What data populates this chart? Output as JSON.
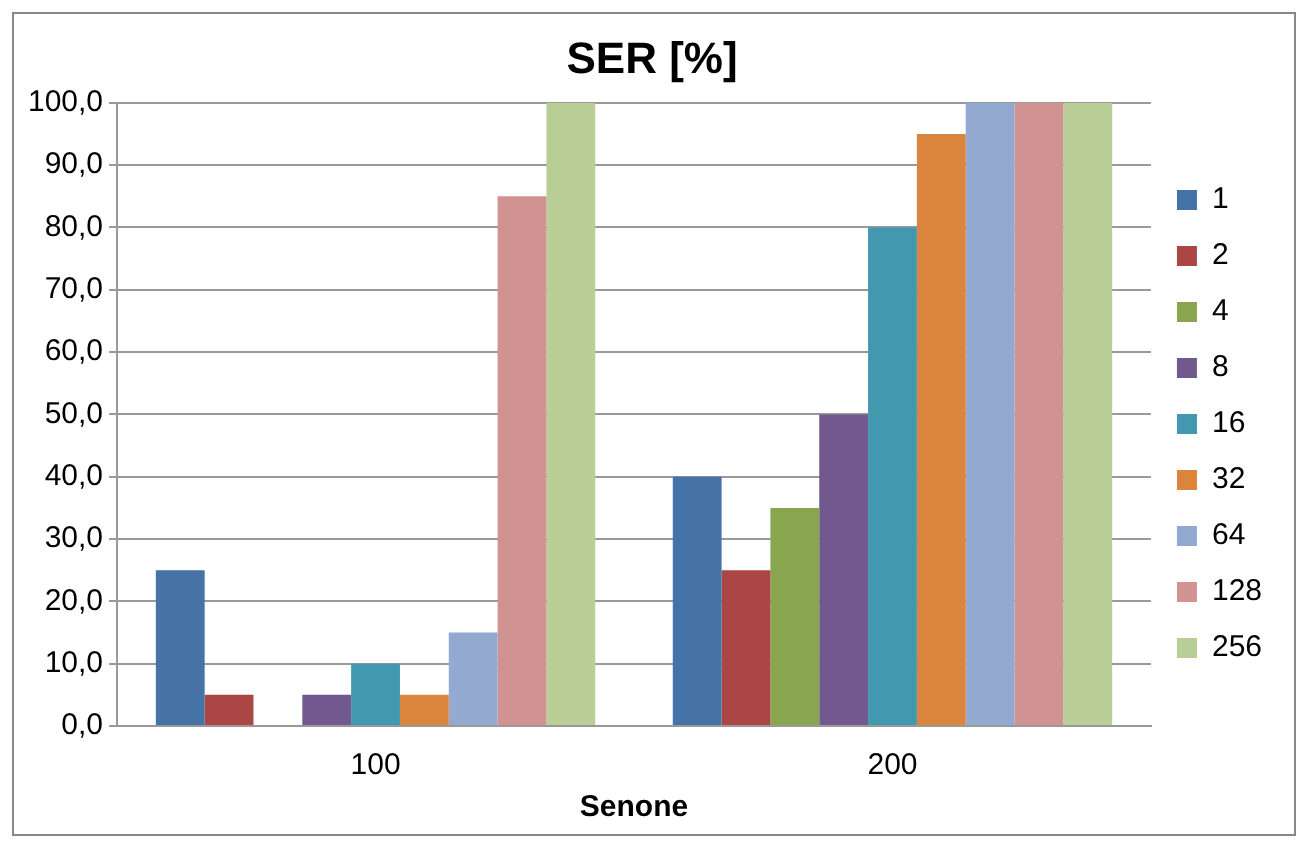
{
  "chart_data": {
    "type": "bar",
    "title": "SER [%]",
    "xlabel": "Senone",
    "categories": [
      "100",
      "200"
    ],
    "series": [
      {
        "name": "1",
        "color": "#4572a7",
        "values": [
          25,
          40
        ]
      },
      {
        "name": "2",
        "color": "#aa4643",
        "values": [
          5,
          25
        ]
      },
      {
        "name": "4",
        "color": "#89a54e",
        "values": [
          0,
          35
        ]
      },
      {
        "name": "8",
        "color": "#71588f",
        "values": [
          5,
          50
        ]
      },
      {
        "name": "16",
        "color": "#4198af",
        "values": [
          10,
          80
        ]
      },
      {
        "name": "32",
        "color": "#db843d",
        "values": [
          5,
          95
        ]
      },
      {
        "name": "64",
        "color": "#93a9cf",
        "values": [
          15,
          100
        ]
      },
      {
        "name": "128",
        "color": "#d19392",
        "values": [
          85,
          100
        ]
      },
      {
        "name": "256",
        "color": "#b9cd96",
        "values": [
          100,
          100
        ]
      }
    ],
    "ylim": [
      0,
      100
    ],
    "yticks": [
      {
        "value": 0,
        "label": "0,0"
      },
      {
        "value": 10,
        "label": "10,0"
      },
      {
        "value": 20,
        "label": "20,0"
      },
      {
        "value": 30,
        "label": "30,0"
      },
      {
        "value": 40,
        "label": "40,0"
      },
      {
        "value": 50,
        "label": "50,0"
      },
      {
        "value": 60,
        "label": "60,0"
      },
      {
        "value": 70,
        "label": "70,0"
      },
      {
        "value": 80,
        "label": "80,0"
      },
      {
        "value": 90,
        "label": "90,0"
      },
      {
        "value": 100,
        "label": "100,0"
      }
    ],
    "grid": "y",
    "legend": "right"
  }
}
